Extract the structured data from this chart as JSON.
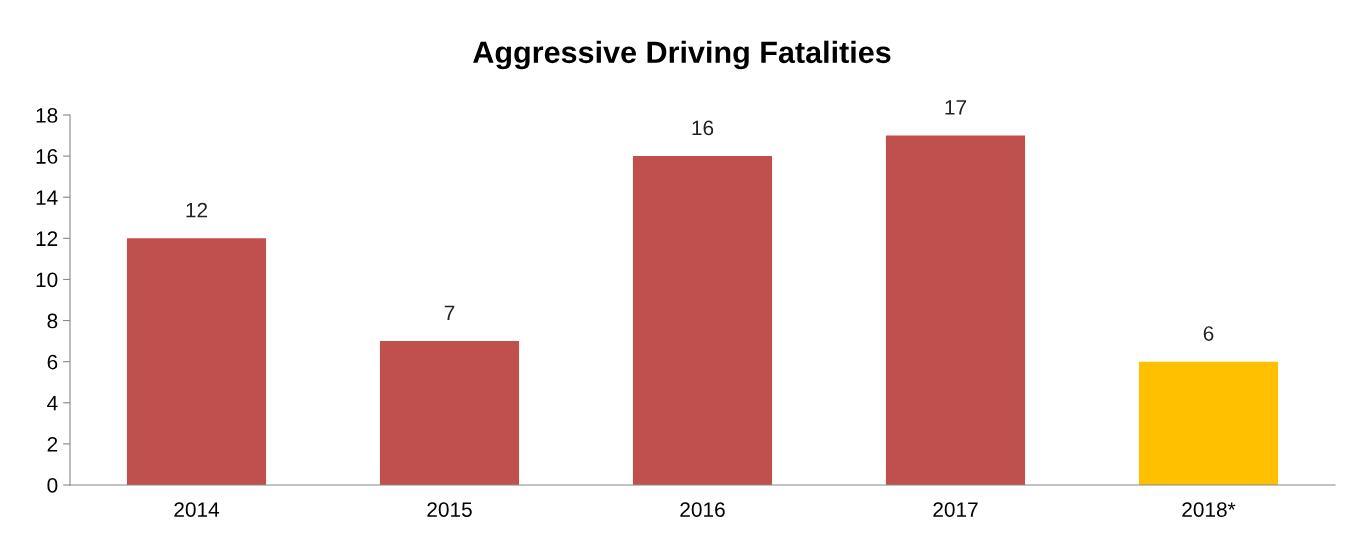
{
  "chart_data": {
    "type": "bar",
    "title": "Aggressive Driving Fatalities",
    "categories": [
      "2014",
      "2015",
      "2016",
      "2017",
      "2018*"
    ],
    "values": [
      12,
      7,
      16,
      17,
      6
    ],
    "colors": [
      "#c0504d",
      "#c0504d",
      "#c0504d",
      "#c0504d",
      "#ffc000"
    ],
    "ylim": [
      0,
      18
    ],
    "yticks": [
      0,
      2,
      4,
      6,
      8,
      10,
      12,
      14,
      16,
      18
    ],
    "grid": false,
    "data_labels": true
  }
}
